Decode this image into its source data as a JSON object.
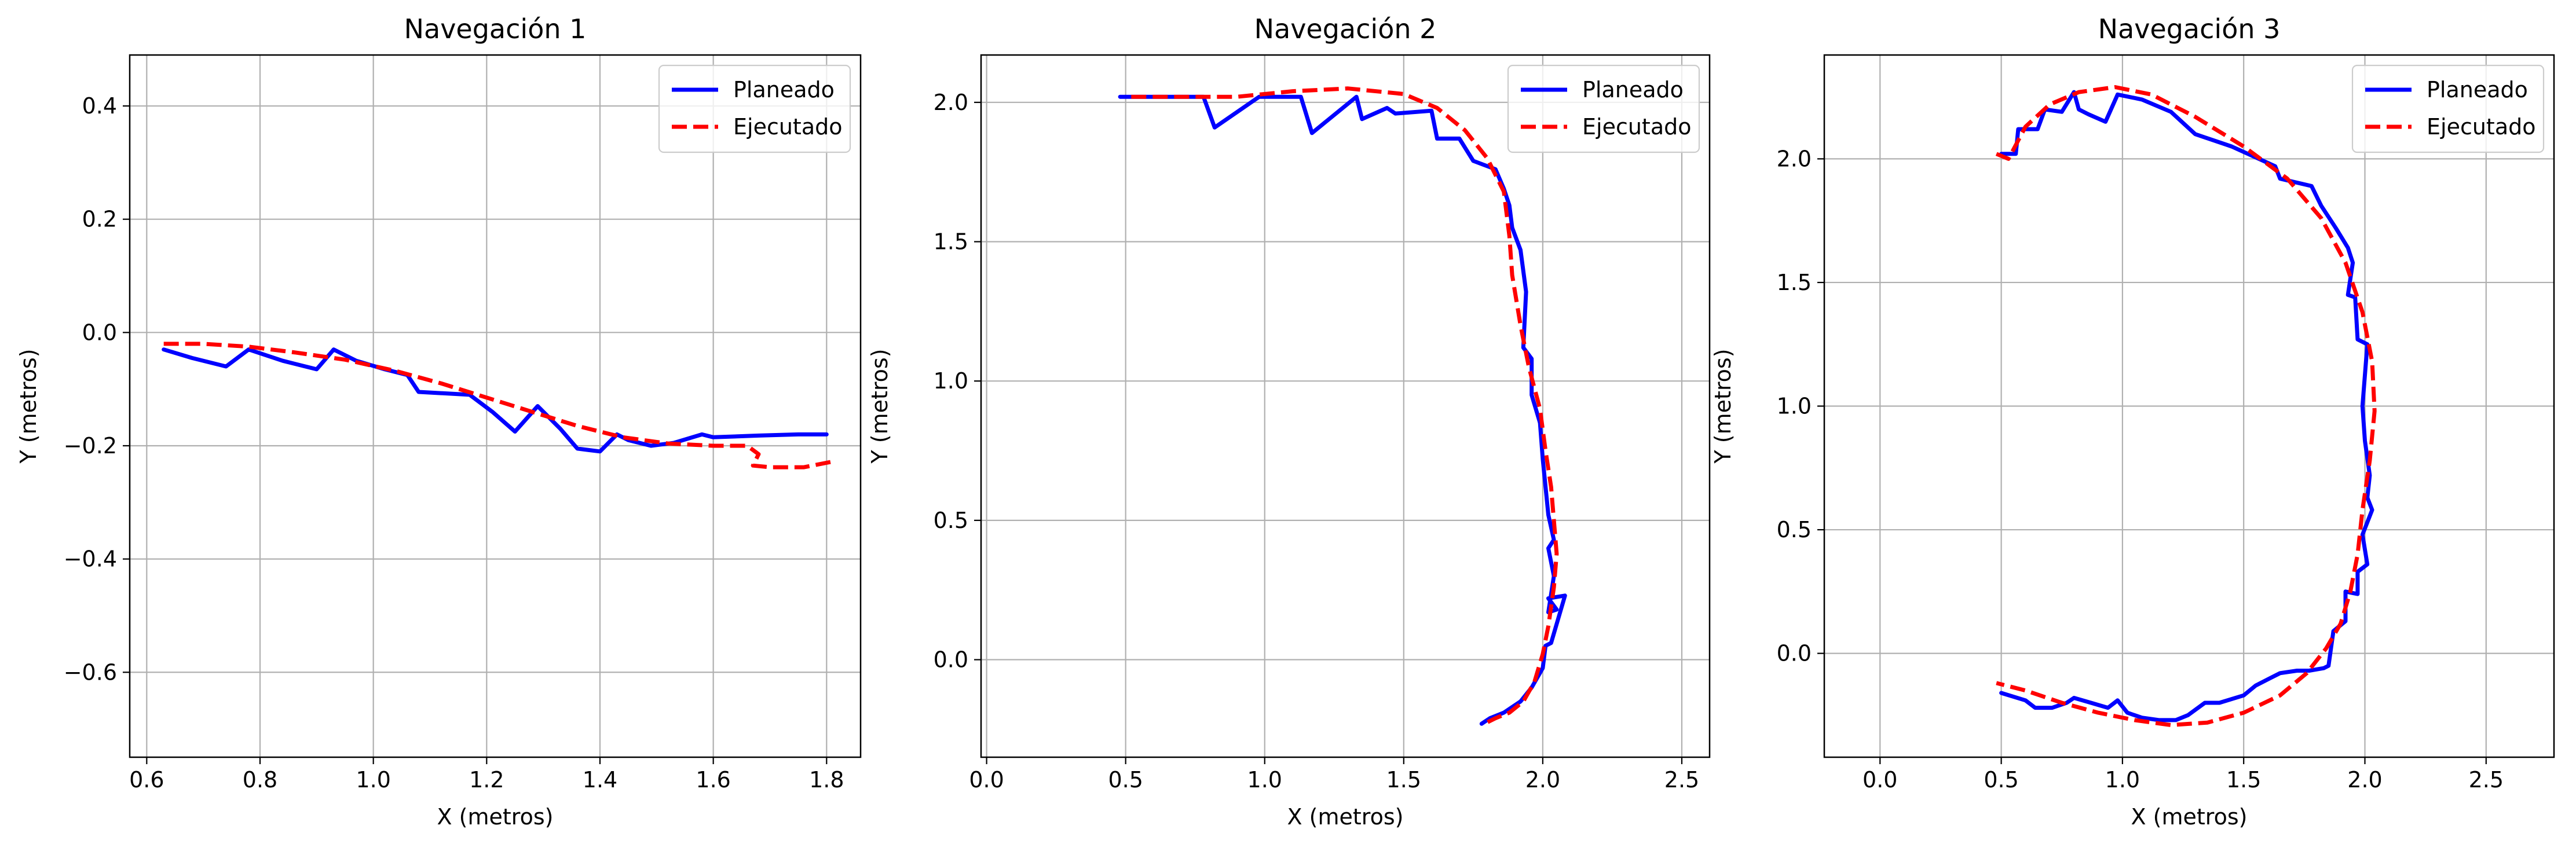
{
  "figure": {
    "background": "#ffffff",
    "grid_color": "#b0b0b0"
  },
  "chart_data": [
    {
      "type": "line",
      "title": "Navegación 1",
      "xlabel": "X (metros)",
      "ylabel": "Y (metros)",
      "xlim": [
        0.57,
        1.86
      ],
      "ylim": [
        -0.75,
        0.49
      ],
      "xticks": [
        0.6,
        0.8,
        1.0,
        1.2,
        1.4,
        1.6,
        1.8
      ],
      "xtick_labels": [
        "0.6",
        "0.8",
        "1.0",
        "1.2",
        "1.4",
        "1.6",
        "1.8"
      ],
      "yticks": [
        -0.6,
        -0.4,
        -0.2,
        0.0,
        0.2,
        0.4
      ],
      "ytick_labels": [
        "−0.6",
        "−0.4",
        "−0.2",
        "0.0",
        "0.2",
        "0.4"
      ],
      "grid": true,
      "legend": "top-right",
      "series": [
        {
          "name": "Planeado",
          "color": "#0000ff",
          "style": "solid",
          "x": [
            0.63,
            0.68,
            0.74,
            0.78,
            0.84,
            0.9,
            0.93,
            0.97,
            1.02,
            1.06,
            1.08,
            1.17,
            1.21,
            1.25,
            1.29,
            1.33,
            1.36,
            1.4,
            1.43,
            1.45,
            1.49,
            1.53,
            1.58,
            1.6,
            1.68,
            1.75,
            1.8
          ],
          "y": [
            -0.03,
            -0.045,
            -0.06,
            -0.03,
            -0.05,
            -0.065,
            -0.03,
            -0.05,
            -0.065,
            -0.075,
            -0.105,
            -0.11,
            -0.14,
            -0.175,
            -0.13,
            -0.17,
            -0.205,
            -0.21,
            -0.18,
            -0.19,
            -0.2,
            -0.195,
            -0.18,
            -0.185,
            -0.182,
            -0.18,
            -0.18
          ]
        },
        {
          "name": "Ejecutado",
          "color": "#ff0000",
          "style": "dashed",
          "x": [
            0.63,
            0.7,
            0.78,
            0.86,
            0.95,
            1.04,
            1.12,
            1.2,
            1.28,
            1.36,
            1.44,
            1.52,
            1.6,
            1.66,
            1.68,
            1.67,
            1.7,
            1.76,
            1.79,
            1.81
          ],
          "y": [
            -0.02,
            -0.02,
            -0.025,
            -0.035,
            -0.048,
            -0.068,
            -0.09,
            -0.115,
            -0.14,
            -0.165,
            -0.185,
            -0.196,
            -0.2,
            -0.2,
            -0.215,
            -0.235,
            -0.238,
            -0.238,
            -0.232,
            -0.228
          ]
        }
      ]
    },
    {
      "type": "line",
      "title": "Navegación 2",
      "xlabel": "X (metros)",
      "ylabel": "Y (metros)",
      "xlim": [
        -0.02,
        2.6
      ],
      "ylim": [
        -0.35,
        2.17
      ],
      "xticks": [
        0.0,
        0.5,
        1.0,
        1.5,
        2.0,
        2.5
      ],
      "xtick_labels": [
        "0.0",
        "0.5",
        "1.0",
        "1.5",
        "2.0",
        "2.5"
      ],
      "yticks": [
        0.0,
        0.5,
        1.0,
        1.5,
        2.0
      ],
      "ytick_labels": [
        "0.0",
        "0.5",
        "1.0",
        "1.5",
        "2.0"
      ],
      "grid": true,
      "legend": "top-right",
      "series": [
        {
          "name": "Planeado",
          "color": "#0000ff",
          "style": "solid",
          "x": [
            0.48,
            0.62,
            0.78,
            0.82,
            0.98,
            1.13,
            1.17,
            1.33,
            1.35,
            1.44,
            1.47,
            1.6,
            1.62,
            1.7,
            1.75,
            1.83,
            1.86,
            1.88,
            1.89,
            1.92,
            1.94,
            1.93,
            1.96,
            1.96,
            1.99,
            2.0,
            2.01,
            2.02,
            2.04,
            2.02,
            2.04,
            2.02,
            2.05,
            2.02,
            2.08,
            2.03,
            2.01,
            2.0,
            1.96,
            1.92,
            1.86,
            1.81,
            1.78
          ],
          "y": [
            2.02,
            2.02,
            2.02,
            1.91,
            2.02,
            2.02,
            1.89,
            2.02,
            1.94,
            1.98,
            1.96,
            1.97,
            1.87,
            1.87,
            1.79,
            1.76,
            1.69,
            1.63,
            1.55,
            1.47,
            1.32,
            1.12,
            1.08,
            0.95,
            0.85,
            0.72,
            0.62,
            0.52,
            0.43,
            0.4,
            0.3,
            0.17,
            0.18,
            0.22,
            0.23,
            0.06,
            0.05,
            -0.03,
            -0.1,
            -0.15,
            -0.19,
            -0.21,
            -0.23
          ]
        },
        {
          "name": "Ejecutado",
          "color": "#ff0000",
          "style": "dashed",
          "x": [
            0.52,
            0.7,
            0.9,
            1.1,
            1.3,
            1.5,
            1.62,
            1.72,
            1.8,
            1.86,
            1.88,
            1.89,
            1.92,
            1.95,
            1.99,
            2.01,
            2.03,
            2.04,
            2.05,
            2.04,
            2.02,
            2.0,
            1.97,
            1.93,
            1.88,
            1.83,
            1.79
          ],
          "y": [
            2.02,
            2.02,
            2.02,
            2.04,
            2.05,
            2.03,
            1.98,
            1.9,
            1.8,
            1.68,
            1.52,
            1.38,
            1.2,
            1.05,
            0.9,
            0.75,
            0.62,
            0.5,
            0.38,
            0.26,
            0.12,
            0.02,
            -0.08,
            -0.15,
            -0.19,
            -0.21,
            -0.23
          ]
        }
      ]
    },
    {
      "type": "line",
      "title": "Navegación 3",
      "xlabel": "X (metros)",
      "ylabel": "Y (metros)",
      "xlim": [
        -0.23,
        2.78
      ],
      "ylim": [
        -0.42,
        2.42
      ],
      "xticks": [
        0.0,
        0.5,
        1.0,
        1.5,
        2.0,
        2.5
      ],
      "xtick_labels": [
        "0.0",
        "0.5",
        "1.0",
        "1.5",
        "2.0",
        "2.5"
      ],
      "yticks": [
        0.0,
        0.5,
        1.0,
        1.5,
        2.0
      ],
      "ytick_labels": [
        "0.0",
        "0.5",
        "1.0",
        "1.5",
        "2.0"
      ],
      "grid": true,
      "legend": "top-right",
      "series": [
        {
          "name": "Planeado",
          "color": "#0000ff",
          "style": "solid",
          "x": [
            0.5,
            0.56,
            0.57,
            0.65,
            0.68,
            0.75,
            0.8,
            0.82,
            0.86,
            0.93,
            0.98,
            1.08,
            1.2,
            1.3,
            1.45,
            1.63,
            1.65,
            1.78,
            1.82,
            1.88,
            1.93,
            1.95,
            1.93,
            1.96,
            1.97,
            2.01,
            1.99,
            2.0,
            2.02,
            2.01,
            2.03,
            1.99,
            2.01,
            1.97,
            1.97,
            1.92,
            1.92,
            1.87,
            1.85,
            1.83,
            1.77,
            1.72,
            1.65,
            1.61,
            1.55,
            1.5,
            1.4,
            1.34,
            1.27,
            1.22,
            1.15,
            1.08,
            1.02,
            0.98,
            0.94,
            0.87,
            0.8,
            0.77,
            0.71,
            0.64,
            0.6,
            0.5
          ],
          "y": [
            2.02,
            2.02,
            2.12,
            2.12,
            2.2,
            2.19,
            2.27,
            2.2,
            2.18,
            2.15,
            2.26,
            2.24,
            2.19,
            2.1,
            2.05,
            1.97,
            1.92,
            1.89,
            1.81,
            1.72,
            1.64,
            1.58,
            1.45,
            1.44,
            1.27,
            1.25,
            1.0,
            0.86,
            0.72,
            0.63,
            0.58,
            0.48,
            0.36,
            0.33,
            0.24,
            0.25,
            0.13,
            0.09,
            -0.05,
            -0.06,
            -0.07,
            -0.07,
            -0.08,
            -0.1,
            -0.13,
            -0.17,
            -0.2,
            -0.2,
            -0.25,
            -0.27,
            -0.27,
            -0.26,
            -0.24,
            -0.19,
            -0.22,
            -0.2,
            -0.18,
            -0.2,
            -0.22,
            -0.22,
            -0.19,
            -0.16
          ]
        },
        {
          "name": "Ejecutado",
          "color": "#ff0000",
          "style": "dashed",
          "x": [
            0.48,
            0.53,
            0.6,
            0.7,
            0.82,
            0.97,
            1.12,
            1.3,
            1.5,
            1.68,
            1.82,
            1.92,
            1.99,
            2.03,
            2.04,
            2.02,
            1.99,
            1.97,
            1.94,
            1.9,
            1.84,
            1.76,
            1.65,
            1.5,
            1.35,
            1.2,
            1.05,
            0.9,
            0.75,
            0.6,
            0.48
          ],
          "y": [
            2.02,
            2.0,
            2.13,
            2.22,
            2.27,
            2.29,
            2.26,
            2.17,
            2.05,
            1.92,
            1.76,
            1.58,
            1.38,
            1.18,
            0.98,
            0.78,
            0.58,
            0.4,
            0.25,
            0.12,
            0.02,
            -0.08,
            -0.17,
            -0.24,
            -0.28,
            -0.29,
            -0.27,
            -0.24,
            -0.2,
            -0.15,
            -0.12
          ]
        }
      ]
    }
  ]
}
